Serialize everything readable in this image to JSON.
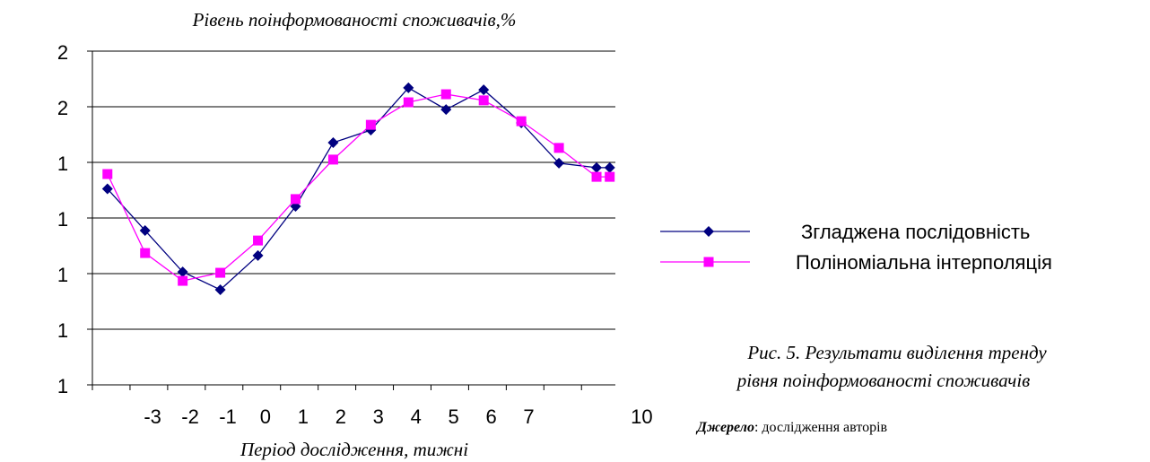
{
  "chart_data": {
    "type": "line",
    "title": "Рівень поінформованості споживачів,%",
    "x_label": "Період дослідження, тижні",
    "xlim": [
      -4.6,
      9.3
    ],
    "xticks": [
      -3,
      -2,
      -1,
      0,
      1,
      2,
      3,
      4,
      5,
      6,
      7,
      10
    ],
    "ylim": [
      100,
      220
    ],
    "yticks": [
      100,
      120,
      140,
      160,
      180,
      200,
      220
    ],
    "grid": true,
    "legend": "right",
    "series": [
      {
        "name": "Згладжена послідовність",
        "color": "#000080",
        "marker": "diamond",
        "x": [
          -4.2,
          -3.2,
          -2.2,
          -1.2,
          -0.2,
          0.8,
          1.8,
          2.8,
          3.8,
          4.8,
          5.8,
          6.8,
          7.8,
          8.8,
          9.15
        ],
        "values": [
          170.5,
          155.5,
          140.6,
          134.2,
          146.5,
          164.2,
          187.1,
          191.6,
          206.8,
          199.0,
          206.1,
          194.2,
          179.7,
          178.1,
          178.1
        ]
      },
      {
        "name": "Поліноміальна інтерполяція",
        "color": "#ff00ff",
        "marker": "square",
        "x": [
          -4.2,
          -3.2,
          -2.2,
          -1.2,
          -0.2,
          0.8,
          1.8,
          2.8,
          3.8,
          4.8,
          5.8,
          6.8,
          7.8,
          8.8,
          9.15
        ],
        "values": [
          175.8,
          147.4,
          137.4,
          140.3,
          151.9,
          166.8,
          181.0,
          193.5,
          201.6,
          204.5,
          202.3,
          194.8,
          185.2,
          174.8,
          174.8
        ]
      }
    ],
    "caption": [
      "Рис. 5. Результати виділення тренду",
      "рівня поінформованості споживачів"
    ],
    "source_label": "Джерело",
    "source_text": ": дослідження авторів"
  }
}
